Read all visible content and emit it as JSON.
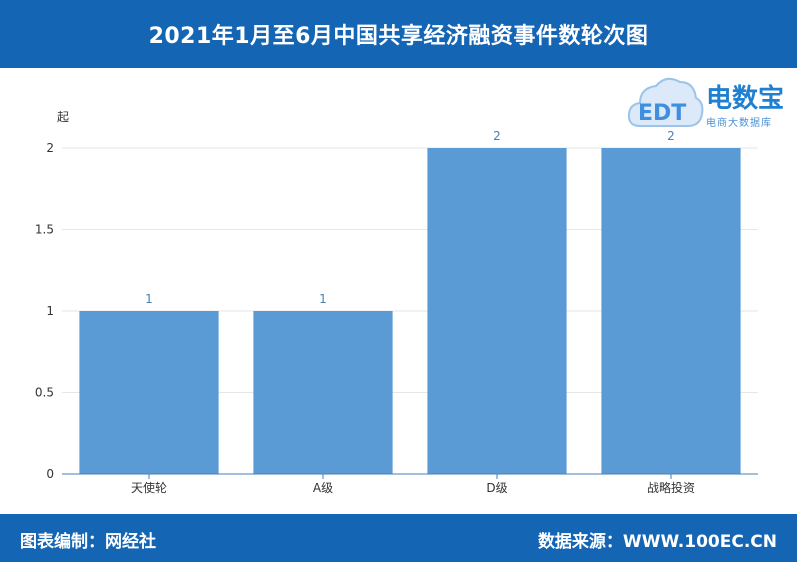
{
  "header": {
    "title": "2021年1月至6月中国共享经济融资事件数轮次图"
  },
  "footer": {
    "left": "图表编制：网经社",
    "right": "数据来源：WWW.100EC.CN"
  },
  "watermark": {
    "name": "电数宝",
    "subtitle": "电商大数据库",
    "logo_text": "EDT"
  },
  "colors": {
    "bar": "#5b9bd5",
    "header": "#1565b5",
    "data_label": "#4a7fb8"
  },
  "chart_data": {
    "type": "bar",
    "categories": [
      "天使轮",
      "A级",
      "D级",
      "战略投资"
    ],
    "values": [
      1,
      1,
      2,
      2
    ],
    "ylabel": "起",
    "ylim": [
      0,
      2
    ],
    "yticks": [
      0,
      0.5,
      1,
      1.5,
      2
    ],
    "grid": true,
    "data_labels": true
  }
}
